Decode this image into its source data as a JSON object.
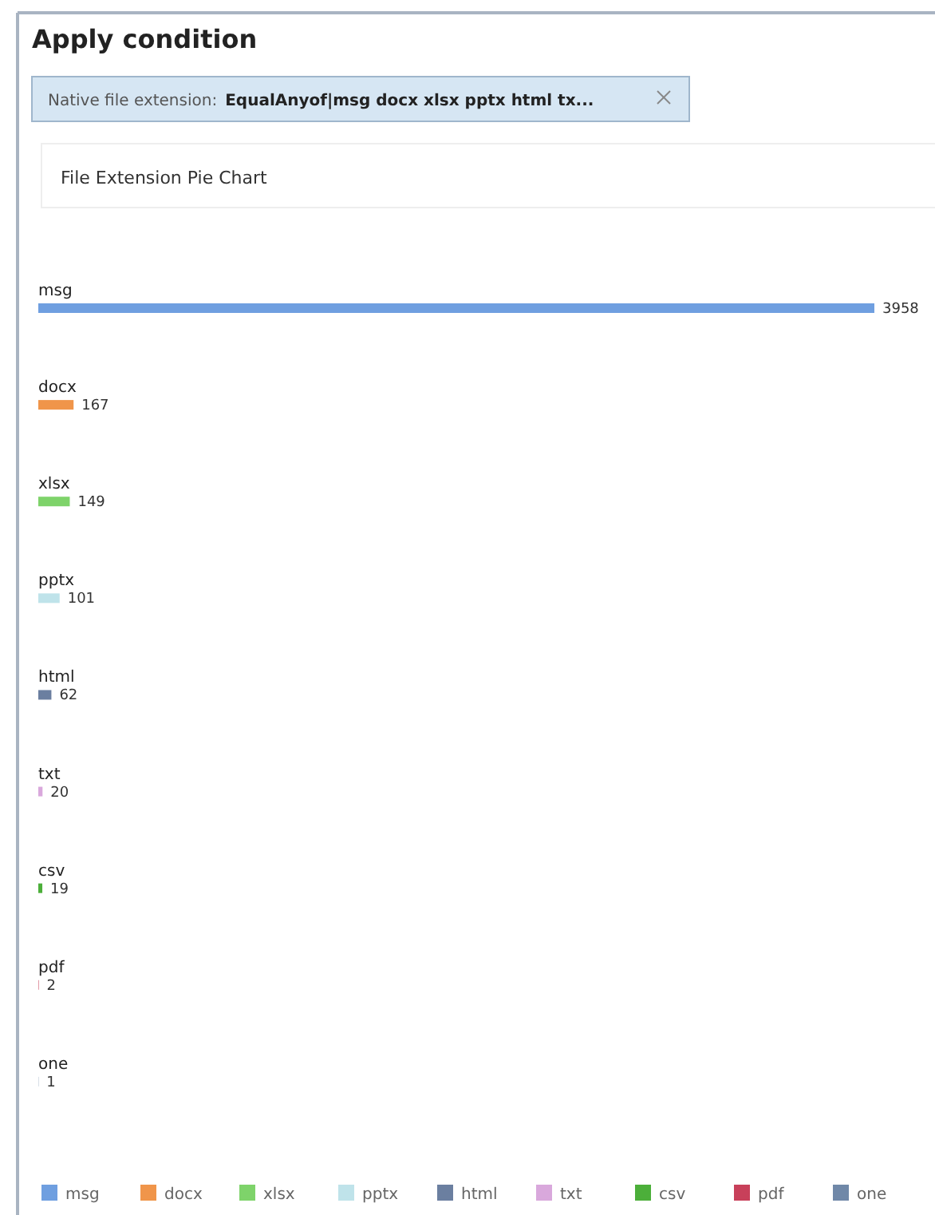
{
  "chart_data": {
    "type": "bar",
    "orientation": "horizontal",
    "stacked": true,
    "title": "File Extension Pie Chart",
    "annotations": [
      "Apply condition",
      "Native file extension:",
      "EqualAnyof|msg docx xlsx pptx html tx..."
    ],
    "categories": [
      "msg",
      "docx",
      "xlsx",
      "pptx",
      "html",
      "txt",
      "csv",
      "pdf",
      "one"
    ],
    "series": [
      {
        "name": "msg",
        "color": "#6f9fe0",
        "values": [
          3958,
          null,
          null,
          null,
          null,
          null,
          null,
          null,
          null
        ]
      },
      {
        "name": "docx",
        "color": "#f0954a",
        "values": [
          null,
          167,
          null,
          null,
          null,
          null,
          null,
          null,
          null
        ]
      },
      {
        "name": "xlsx",
        "color": "#7ed36a",
        "values": [
          null,
          null,
          149,
          null,
          null,
          null,
          null,
          null,
          null
        ]
      },
      {
        "name": "pptx",
        "color": "#bfe3ea",
        "values": [
          null,
          null,
          null,
          101,
          null,
          null,
          null,
          null,
          null
        ]
      },
      {
        "name": "html",
        "color": "#6b7fa0",
        "values": [
          null,
          null,
          null,
          null,
          62,
          null,
          null,
          null,
          null
        ]
      },
      {
        "name": "txt",
        "color": "#d9a8dc",
        "values": [
          null,
          null,
          null,
          null,
          null,
          20,
          null,
          null,
          null
        ]
      },
      {
        "name": "csv",
        "color": "#4caf3a",
        "values": [
          null,
          null,
          null,
          null,
          null,
          null,
          19,
          null,
          null
        ]
      },
      {
        "name": "pdf",
        "color": "#c8405a",
        "values": [
          null,
          null,
          null,
          null,
          null,
          null,
          null,
          2,
          null
        ]
      },
      {
        "name": "one",
        "color": "#7088a8",
        "values": [
          null,
          null,
          null,
          null,
          null,
          null,
          null,
          null,
          1
        ]
      }
    ],
    "data_labels": true,
    "legend": "bottom"
  }
}
